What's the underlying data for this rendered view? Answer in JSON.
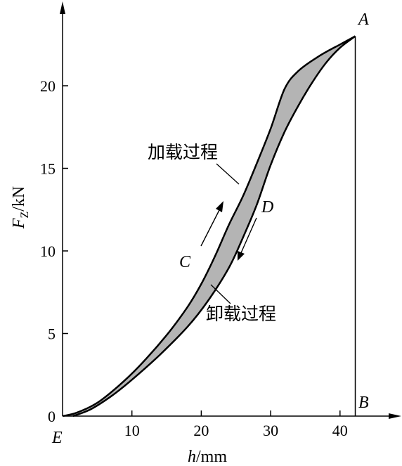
{
  "chart_data": {
    "type": "line",
    "xlabel": "h/mm",
    "ylabel": "F_Z/kN",
    "xlabel_parts": {
      "var": "h",
      "unit": "/mm"
    },
    "ylabel_parts": {
      "var": "F",
      "sub": "Z",
      "unit": "/kN"
    },
    "xlim": [
      0,
      50
    ],
    "ylim": [
      0,
      25
    ],
    "x_ticks": [
      10,
      20,
      30,
      40
    ],
    "y_ticks": [
      0,
      5,
      10,
      15,
      20
    ],
    "fill_color": "#b4b4b4",
    "series": [
      {
        "name": "加载过程",
        "points": [
          [
            0,
            0
          ],
          [
            2,
            0.2
          ],
          [
            5,
            0.8
          ],
          [
            8,
            1.8
          ],
          [
            11,
            3.0
          ],
          [
            15,
            4.9
          ],
          [
            18,
            6.6
          ],
          [
            20,
            8.0
          ],
          [
            22,
            9.7
          ],
          [
            24,
            11.6
          ],
          [
            26,
            13.3
          ],
          [
            28,
            15.3
          ],
          [
            30,
            17.4
          ],
          [
            32,
            19.8
          ],
          [
            34,
            20.9
          ],
          [
            37,
            21.8
          ],
          [
            40,
            22.5
          ],
          [
            42.2,
            23.0
          ]
        ]
      },
      {
        "name": "卸载过程",
        "points": [
          [
            1.5,
            0
          ],
          [
            4,
            0.4
          ],
          [
            7,
            1.2
          ],
          [
            10,
            2.2
          ],
          [
            14,
            3.7
          ],
          [
            18,
            5.4
          ],
          [
            21,
            7.0
          ],
          [
            24,
            9.0
          ],
          [
            26,
            10.8
          ],
          [
            28,
            12.8
          ],
          [
            30,
            15.2
          ],
          [
            32,
            17.2
          ],
          [
            34,
            18.8
          ],
          [
            36,
            20.2
          ],
          [
            38,
            21.4
          ],
          [
            40,
            22.3
          ],
          [
            42.2,
            23.0
          ]
        ]
      }
    ],
    "vertical_line_x": 42.2,
    "points_labels": [
      {
        "label": "A",
        "x": 42.2,
        "y": 23.0
      },
      {
        "label": "B",
        "x": 42.2,
        "y": 0
      },
      {
        "label": "C",
        "x": 18.0,
        "y": 9.0
      },
      {
        "label": "D",
        "x": 29.0,
        "y": 12.0
      },
      {
        "label": "E",
        "x": 0,
        "y": 0
      }
    ],
    "annotations": [
      "加载过程",
      "卸载过程"
    ]
  }
}
